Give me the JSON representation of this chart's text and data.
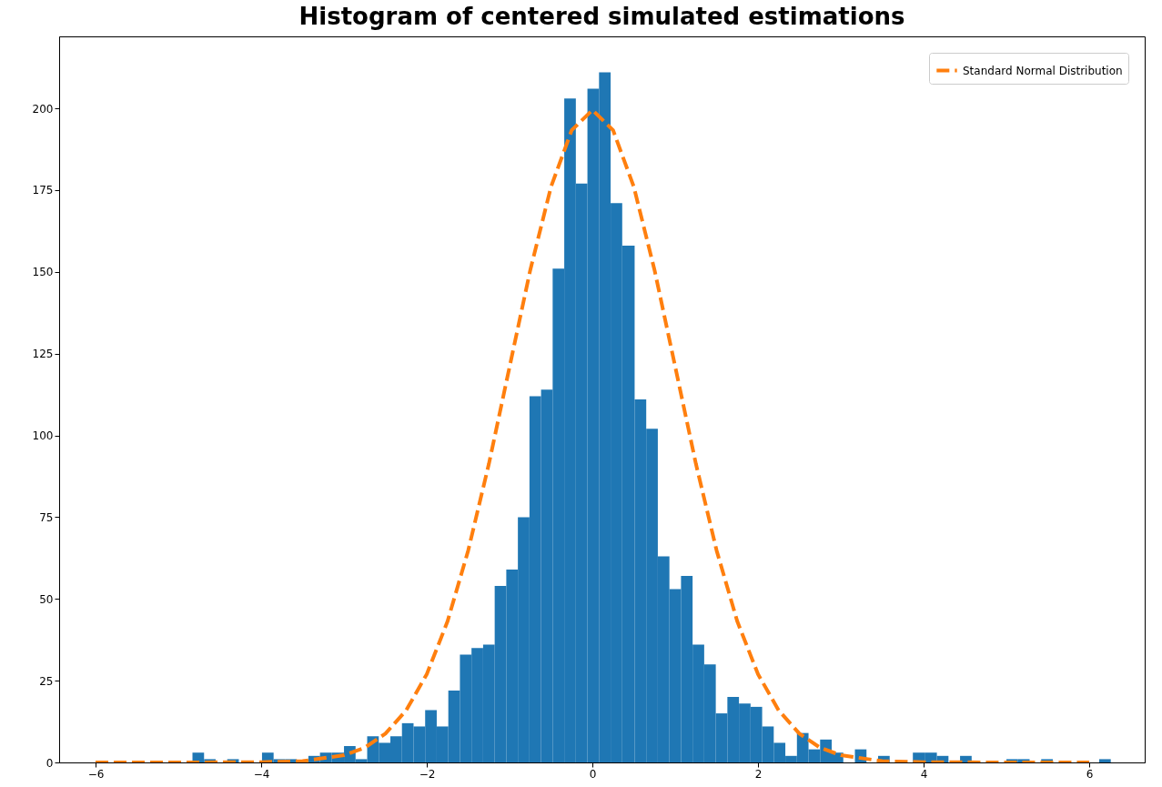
{
  "chart_data": {
    "type": "histogram",
    "title": "Histogram of centered simulated estimations",
    "bins": [
      -4.83,
      -4.69,
      -4.55,
      -4.41,
      -4.27,
      -3.99,
      -3.85,
      -3.71,
      -3.57,
      -3.43,
      -3.29,
      -3.15,
      -3.0,
      -2.86,
      -2.72,
      -2.58,
      -2.44,
      -2.3,
      -2.16,
      -2.02,
      -1.88,
      -1.74,
      -1.6,
      -1.46,
      -1.32,
      -1.18,
      -1.04,
      -0.9,
      -0.76,
      -0.62,
      -0.48,
      -0.34,
      -0.2,
      -0.06,
      0.08,
      0.22,
      0.36,
      0.51,
      0.65,
      0.79,
      0.93,
      1.07,
      1.21,
      1.35,
      1.49,
      1.63,
      1.77,
      1.91,
      2.05,
      2.19,
      2.33,
      2.47,
      2.61,
      2.75,
      2.89,
      3.03,
      3.17,
      3.31,
      3.45,
      3.59,
      3.87,
      4.02,
      4.16,
      4.3,
      4.44,
      4.58,
      5.0,
      5.14,
      5.28,
      5.42,
      5.56,
      6.12,
      6.26
    ],
    "series": [
      {
        "type": "histogram",
        "color": "#1f77b4",
        "values": [
          3,
          1,
          0,
          1,
          0,
          3,
          1,
          1,
          null,
          2,
          3,
          3,
          5,
          1,
          8,
          6,
          8,
          12,
          11,
          16,
          11,
          22,
          33,
          35,
          36,
          54,
          59,
          75,
          112,
          114,
          151,
          203,
          177,
          206,
          211,
          171,
          158,
          111,
          102,
          63,
          53,
          57,
          36,
          30,
          15,
          20,
          18,
          17,
          11,
          6,
          2,
          9,
          4,
          7,
          3,
          0,
          4,
          0,
          2,
          0,
          3,
          3,
          2,
          0,
          2,
          0,
          1,
          1,
          0,
          1,
          0,
          1
        ]
      },
      {
        "type": "line",
        "name": "Standard Normal Distribution",
        "color": "#ff7f0e",
        "line_style": "dashed",
        "x": [
          -6,
          -5,
          -4,
          -3.5,
          -3,
          -2.75,
          -2.5,
          -2.25,
          -2,
          -1.75,
          -1.5,
          -1.25,
          -1,
          -0.75,
          -0.5,
          -0.25,
          0,
          0.25,
          0.5,
          0.75,
          1,
          1.25,
          1.5,
          1.75,
          2,
          2.25,
          2.5,
          2.75,
          3,
          3.5,
          4,
          5,
          6
        ],
        "values": [
          0,
          0,
          0.1,
          0.4,
          2.2,
          4.5,
          8.8,
          15.9,
          27.0,
          43.1,
          64.8,
          91.3,
          121.0,
          150.6,
          176.0,
          193.3,
          199.5,
          193.3,
          176.0,
          150.6,
          121.0,
          91.3,
          64.8,
          43.1,
          27.0,
          15.9,
          8.8,
          4.5,
          2.2,
          0.4,
          0.1,
          0,
          0
        ]
      }
    ],
    "xlim": [
      -6.44,
      6.67
    ],
    "ylim": [
      0,
      222
    ],
    "xticks": [
      -6,
      -4,
      -2,
      0,
      2,
      4,
      6
    ],
    "yticks": [
      0,
      25,
      50,
      75,
      100,
      125,
      150,
      175,
      200
    ],
    "grid": false,
    "legend": "top right"
  }
}
